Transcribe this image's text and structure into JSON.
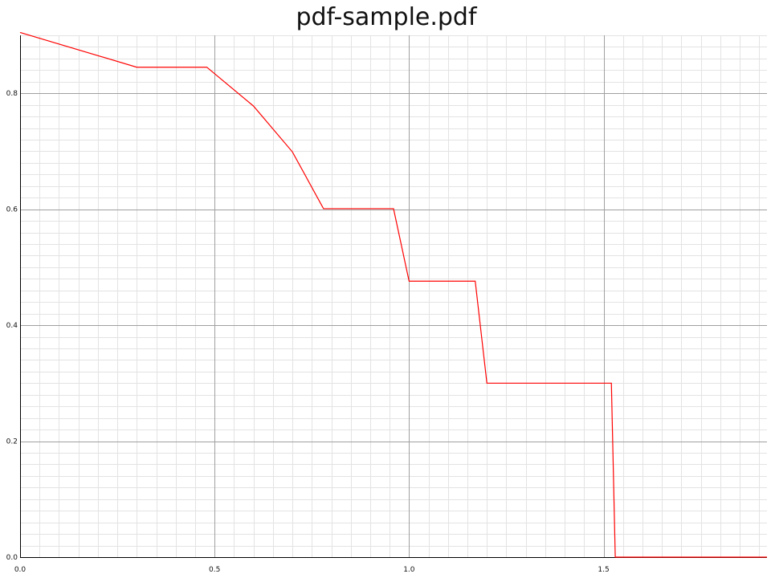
{
  "chart_data": {
    "type": "line",
    "title": "pdf-sample.pdf",
    "xlabel": "",
    "ylabel": "",
    "xlim": [
      0,
      1.92
    ],
    "ylim": [
      0,
      0.9
    ],
    "grid": true,
    "legend": "none",
    "colors": {
      "line": "#ff0000",
      "major_grid": "#a0a0a0",
      "minor_grid": "#e3e3e3",
      "axis": "#000000"
    },
    "x_ticks": [
      0,
      0.5,
      1.0,
      1.5
    ],
    "x_tick_labels": [
      "0.0",
      "0.5",
      "1.0",
      "1.5"
    ],
    "y_ticks": [
      0,
      0.2,
      0.4,
      0.6,
      0.8
    ],
    "y_tick_labels": [
      "0.0",
      "0.2",
      "0.4",
      "0.6",
      "0.8"
    ],
    "x_minor_step": 0.05,
    "y_minor_step": 0.02,
    "series": [
      {
        "x": [
          0.0,
          0.3,
          0.48,
          0.6,
          0.7,
          0.78,
          0.96,
          1.0,
          1.17,
          1.2,
          1.52,
          1.53,
          1.92
        ],
        "y": [
          0.905,
          0.845,
          0.845,
          0.778,
          0.699,
          0.601,
          0.601,
          0.476,
          0.476,
          0.3,
          0.3,
          0.0,
          0.0
        ]
      }
    ]
  }
}
